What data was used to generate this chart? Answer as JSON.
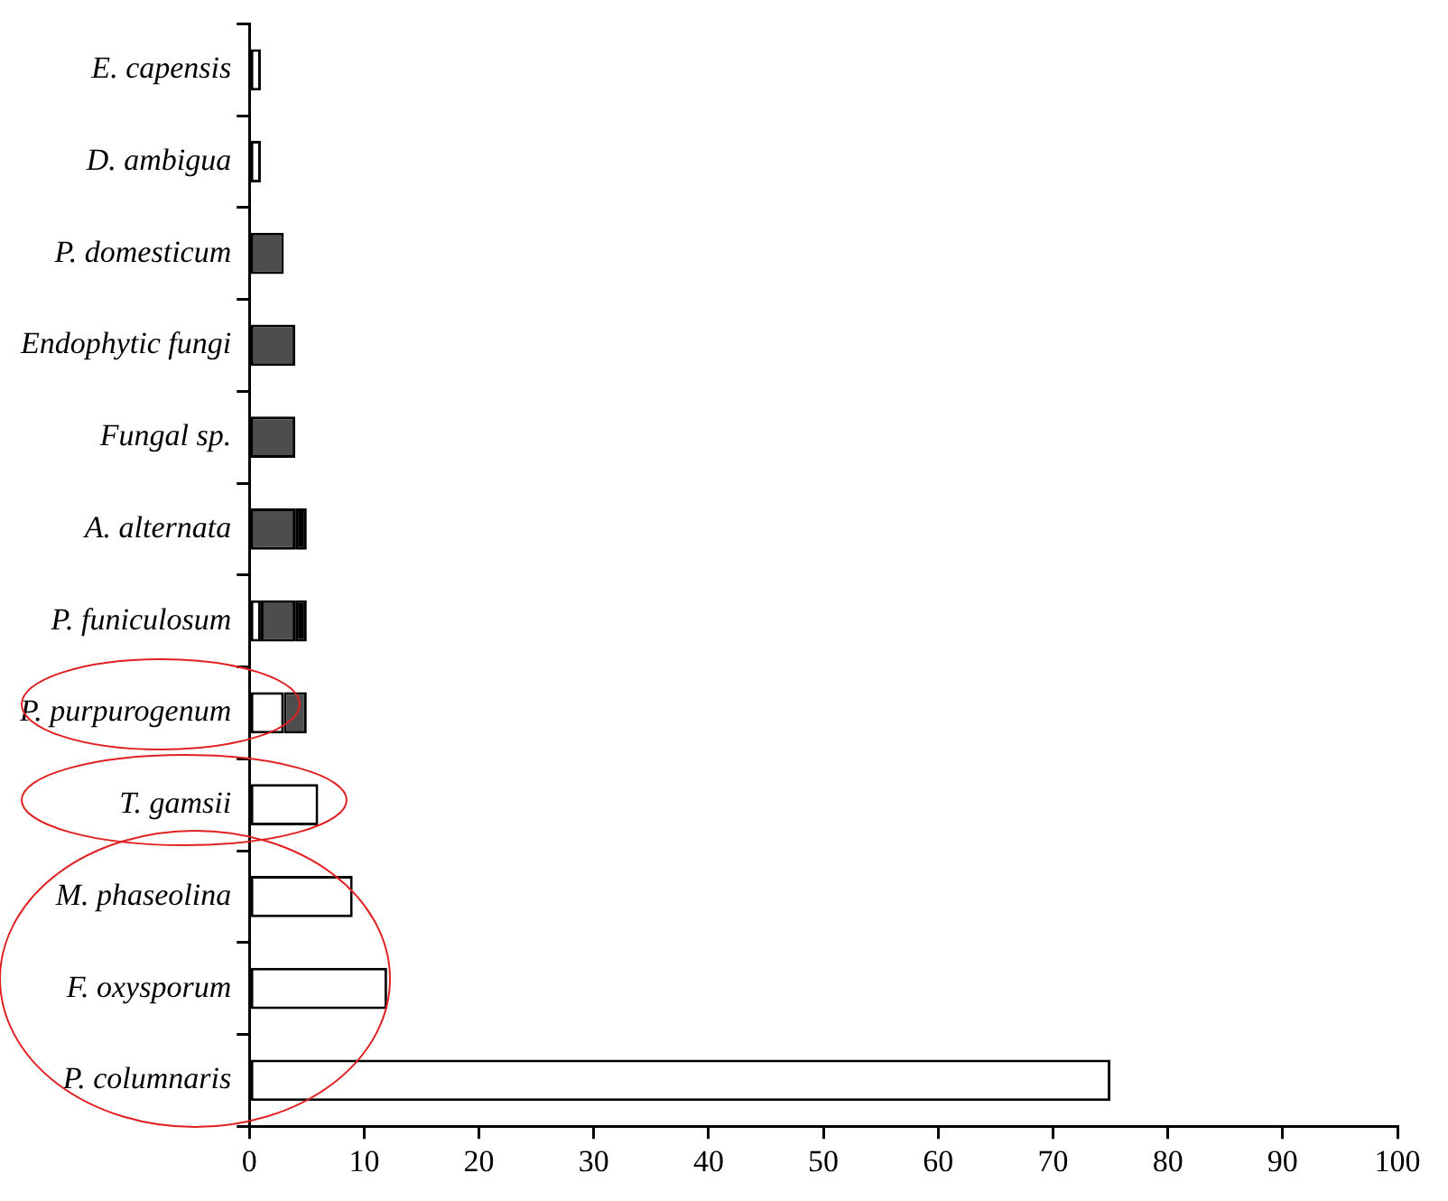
{
  "chart_data": {
    "type": "bar",
    "orientation": "horizontal",
    "stacked": true,
    "categories": [
      "E. capensis",
      "D. ambigua",
      "P. domesticum",
      "Endophytic fungi",
      "Fungal sp.",
      "A. alternata",
      "P. funiculosum",
      "P. purpurogenum",
      "T. gamsii",
      "M. phaseolina",
      "F. oxysporum",
      "P. columnaris"
    ],
    "series": [
      {
        "color": "#ffffff",
        "values": [
          1,
          1,
          null,
          null,
          null,
          null,
          1,
          3,
          6,
          9,
          12,
          75
        ]
      },
      {
        "color": "#4d4d4d",
        "values": [
          null,
          null,
          3,
          4,
          4,
          4,
          3,
          2,
          null,
          null,
          null,
          null
        ]
      },
      {
        "color": "#000000",
        "values": [
          null,
          null,
          null,
          null,
          null,
          1,
          1,
          null,
          null,
          null,
          null,
          null
        ]
      }
    ],
    "xlim": [
      0,
      100
    ],
    "xticks": [
      0,
      10,
      20,
      30,
      40,
      50,
      60,
      70,
      80,
      90,
      100
    ],
    "grid": false,
    "legend": false
  }
}
